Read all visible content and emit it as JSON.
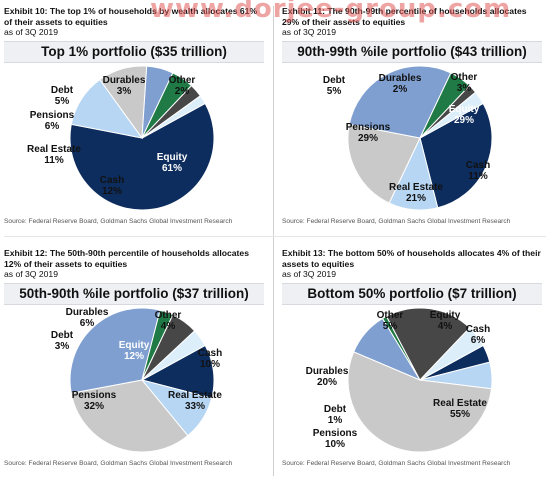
{
  "watermark": "www.dorjee-group.com",
  "panels": [
    {
      "exhibit": "Exhibit 10: The top 1% of households by wealth allocates 61% of their assets to equities",
      "asof": "as of 3Q 2019",
      "title": "Top 1% portfolio ($35 trillion)",
      "source": "Source: Federal Reserve Board, Goldman Sachs Global Investment Research"
    },
    {
      "exhibit": "Exhibit 11: The 90th-99th percentile of households allocates 29% of their assets to equities",
      "asof": "as of 3Q 2019",
      "title": "90th-99th %ile portfolio ($43 trillion)",
      "source": "Source: Federal Reserve Board, Goldman Sachs Global Investment Research"
    },
    {
      "exhibit": "Exhibit 12: The 50th-90th percentile of households allocates 12% of their assets to equities",
      "asof": "as of 3Q 2019",
      "title": "50th-90th %ile portfolio ($37 trillion)",
      "source": "Source: Federal Reserve Board, Goldman Sachs Global Investment Research"
    },
    {
      "exhibit": "Exhibit 13: The bottom 50% of households allocates 4% of their assets to equities",
      "asof": "as of 3Q 2019",
      "title": "Bottom 50% portfolio ($7 trillion)",
      "source": "Source: Federal Reserve Board, Goldman Sachs Global Investment Research"
    }
  ],
  "colors": {
    "Equity": "#0d2d5e",
    "Cash": "#b7d6f3",
    "Real Estate": "#c9c9c9",
    "Pensions": "#7f9fd0",
    "Debt": "#1f7a45",
    "Durables": "#474747",
    "Other": "#ddeefb"
  },
  "chart_data": [
    {
      "type": "pie",
      "title": "Top 1% portfolio ($35 trillion)",
      "slices": [
        {
          "label": "Equity",
          "value": 61
        },
        {
          "label": "Cash",
          "value": 12
        },
        {
          "label": "Real Estate",
          "value": 11
        },
        {
          "label": "Pensions",
          "value": 6
        },
        {
          "label": "Debt",
          "value": 5
        },
        {
          "label": "Durables",
          "value": 3
        },
        {
          "label": "Other",
          "value": 2
        }
      ]
    },
    {
      "type": "pie",
      "title": "90th-99th %ile portfolio ($43 trillion)",
      "slices": [
        {
          "label": "Equity",
          "value": 29
        },
        {
          "label": "Cash",
          "value": 11
        },
        {
          "label": "Real Estate",
          "value": 21
        },
        {
          "label": "Pensions",
          "value": 29
        },
        {
          "label": "Debt",
          "value": 5
        },
        {
          "label": "Durables",
          "value": 2
        },
        {
          "label": "Other",
          "value": 3
        }
      ]
    },
    {
      "type": "pie",
      "title": "50th-90th %ile portfolio ($37 trillion)",
      "slices": [
        {
          "label": "Equity",
          "value": 12
        },
        {
          "label": "Cash",
          "value": 10
        },
        {
          "label": "Real Estate",
          "value": 33
        },
        {
          "label": "Pensions",
          "value": 32
        },
        {
          "label": "Debt",
          "value": 3
        },
        {
          "label": "Durables",
          "value": 6
        },
        {
          "label": "Other",
          "value": 4
        }
      ]
    },
    {
      "type": "pie",
      "title": "Bottom 50% portfolio ($7 trillion)",
      "slices": [
        {
          "label": "Equity",
          "value": 4
        },
        {
          "label": "Cash",
          "value": 6
        },
        {
          "label": "Real Estate",
          "value": 55
        },
        {
          "label": "Pensions",
          "value": 10
        },
        {
          "label": "Debt",
          "value": 1
        },
        {
          "label": "Durables",
          "value": 20
        },
        {
          "label": "Other",
          "value": 5
        }
      ]
    }
  ]
}
